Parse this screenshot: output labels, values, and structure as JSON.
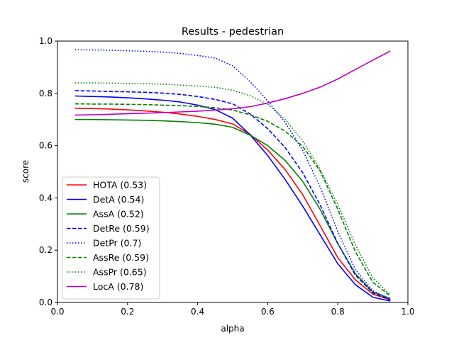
{
  "chart_data": {
    "type": "line",
    "title": "Results - pedestrian",
    "xlabel": "alpha",
    "ylabel": "score",
    "xlim": [
      0.0,
      1.0
    ],
    "ylim": [
      0.0,
      1.0
    ],
    "x_ticks": [
      "0.0",
      "0.2",
      "0.4",
      "0.6",
      "0.8",
      "1.0"
    ],
    "y_ticks": [
      "0.0",
      "0.2",
      "0.4",
      "0.6",
      "0.8",
      "1.0"
    ],
    "grid": false,
    "legend_position": "lower-left",
    "x": [
      0.05,
      0.1,
      0.15,
      0.2,
      0.25,
      0.3,
      0.35,
      0.4,
      0.45,
      0.5,
      0.55,
      0.6,
      0.65,
      0.7,
      0.75,
      0.8,
      0.85,
      0.9,
      0.95
    ],
    "series": [
      {
        "name": "HOTA (0.53)",
        "color": "#ff0000",
        "style": "solid",
        "values": [
          0.743,
          0.742,
          0.74,
          0.737,
          0.733,
          0.728,
          0.721,
          0.712,
          0.7,
          0.683,
          0.643,
          0.583,
          0.508,
          0.412,
          0.293,
          0.171,
          0.087,
          0.032,
          0.01
        ]
      },
      {
        "name": "DetA (0.54)",
        "color": "#0000ff",
        "style": "solid",
        "values": [
          0.79,
          0.788,
          0.786,
          0.783,
          0.779,
          0.774,
          0.767,
          0.755,
          0.738,
          0.705,
          0.641,
          0.562,
          0.47,
          0.368,
          0.258,
          0.148,
          0.068,
          0.02,
          0.005
        ]
      },
      {
        "name": "AssA (0.52)",
        "color": "#008000",
        "style": "solid",
        "values": [
          0.7,
          0.7,
          0.699,
          0.698,
          0.697,
          0.695,
          0.692,
          0.688,
          0.682,
          0.67,
          0.64,
          0.6,
          0.543,
          0.463,
          0.355,
          0.225,
          0.11,
          0.04,
          0.015
        ]
      },
      {
        "name": "DetRe (0.59)",
        "color": "#0000ff",
        "style": "dashed",
        "values": [
          0.81,
          0.809,
          0.807,
          0.806,
          0.804,
          0.801,
          0.796,
          0.788,
          0.777,
          0.76,
          0.721,
          0.665,
          0.592,
          0.496,
          0.372,
          0.226,
          0.105,
          0.037,
          0.01
        ]
      },
      {
        "name": "DetPr (0.7)",
        "color": "#0000ff",
        "style": "dotted",
        "values": [
          0.967,
          0.966,
          0.965,
          0.963,
          0.961,
          0.958,
          0.953,
          0.945,
          0.935,
          0.905,
          0.845,
          0.771,
          0.688,
          0.582,
          0.441,
          0.271,
          0.126,
          0.045,
          0.012
        ]
      },
      {
        "name": "AssRe (0.59)",
        "color": "#008000",
        "style": "dashed",
        "values": [
          0.76,
          0.759,
          0.759,
          0.758,
          0.757,
          0.755,
          0.753,
          0.75,
          0.745,
          0.736,
          0.718,
          0.693,
          0.655,
          0.597,
          0.502,
          0.356,
          0.195,
          0.077,
          0.025
        ]
      },
      {
        "name": "AssPr (0.65)",
        "color": "#008000",
        "style": "dotted",
        "values": [
          0.84,
          0.84,
          0.839,
          0.838,
          0.837,
          0.835,
          0.832,
          0.828,
          0.823,
          0.812,
          0.791,
          0.758,
          0.7,
          0.618,
          0.508,
          0.375,
          0.22,
          0.093,
          0.03
        ]
      },
      {
        "name": "LocA (0.78)",
        "color": "#c000c0",
        "style": "solid",
        "values": [
          0.717,
          0.718,
          0.72,
          0.722,
          0.724,
          0.726,
          0.729,
          0.732,
          0.736,
          0.741,
          0.749,
          0.763,
          0.78,
          0.8,
          0.824,
          0.855,
          0.891,
          0.927,
          0.962
        ]
      }
    ]
  }
}
